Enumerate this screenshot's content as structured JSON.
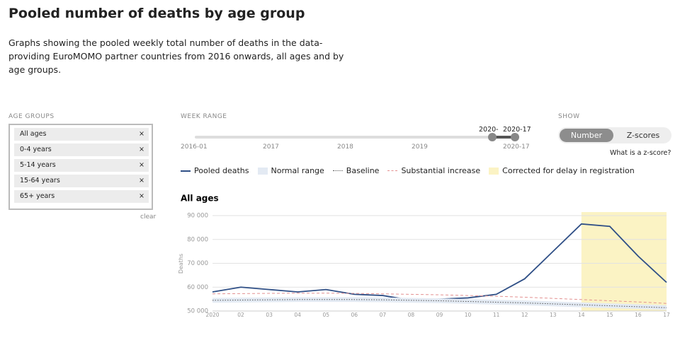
{
  "header": {
    "title": "Pooled number of deaths by age group",
    "description": "Graphs showing the pooled weekly total number of deaths in the data-providing EuroMOMO partner countries from 2016 onwards, all ages and by age groups."
  },
  "age_groups": {
    "label": "AGE GROUPS",
    "items": [
      "All ages",
      "0-4 years",
      "5-14 years",
      "15-64 years",
      "65+ years"
    ],
    "remove": "×",
    "clear": "clear"
  },
  "week_range": {
    "label": "WEEK RANGE",
    "ticks": [
      "2016-01",
      "2017",
      "2018",
      "2019"
    ],
    "start_label": "2020-",
    "end_label": "2020-17",
    "end_below": "2020-17"
  },
  "show": {
    "label": "SHOW",
    "options": [
      "Number",
      "Z-scores"
    ],
    "selected": "Number",
    "help": "What is a z-score?"
  },
  "chart_data": {
    "type": "line",
    "title": "All ages",
    "y_label": "Deaths",
    "categories": [
      "2020",
      "02",
      "03",
      "04",
      "05",
      "06",
      "07",
      "08",
      "09",
      "10",
      "11",
      "12",
      "13",
      "14",
      "15",
      "16",
      "17"
    ],
    "ylim": [
      50000,
      91500
    ],
    "yticks": [
      {
        "value": 50000,
        "label": "50 000"
      },
      {
        "value": 60000,
        "label": "60 000"
      },
      {
        "value": 70000,
        "label": "70 000"
      },
      {
        "value": 80000,
        "label": "80 000"
      },
      {
        "value": 90000,
        "label": "90 000"
      }
    ],
    "grid": true,
    "series": [
      {
        "name": "Pooled deaths",
        "color": "#2f4f86",
        "style": "solid",
        "values": [
          58000,
          60000,
          59000,
          58000,
          59000,
          57000,
          56500,
          54500,
          55000,
          55500,
          57000,
          63500,
          75000,
          86500,
          85500,
          73000,
          62000
        ]
      },
      {
        "name": "Normal range",
        "color": "#e3eaf3",
        "style": "band",
        "lower": [
          53500,
          53600,
          53700,
          53800,
          53800,
          53800,
          53700,
          53500,
          53300,
          53000,
          52700,
          52400,
          52000,
          51600,
          51200,
          50900,
          50500
        ],
        "upper": [
          55500,
          55600,
          55700,
          55800,
          55800,
          55800,
          55700,
          55500,
          55300,
          55000,
          54700,
          54400,
          54000,
          53600,
          53200,
          52800,
          52400
        ]
      },
      {
        "name": "Baseline",
        "color": "#555555",
        "style": "dotted",
        "values": [
          54500,
          54600,
          54700,
          54800,
          54800,
          54800,
          54700,
          54500,
          54300,
          54000,
          53700,
          53400,
          53000,
          52600,
          52200,
          51800,
          51400
        ]
      },
      {
        "name": "Substantial increase",
        "color": "#e39090",
        "style": "dashed",
        "values": [
          57200,
          57300,
          57400,
          57500,
          57500,
          57400,
          57200,
          57000,
          56800,
          56500,
          56200,
          55800,
          55300,
          54800,
          54300,
          53800,
          53200
        ]
      }
    ],
    "highlight": {
      "label": "Corrected for delay in registration",
      "from": "14",
      "color": "#fbf3c4"
    }
  }
}
